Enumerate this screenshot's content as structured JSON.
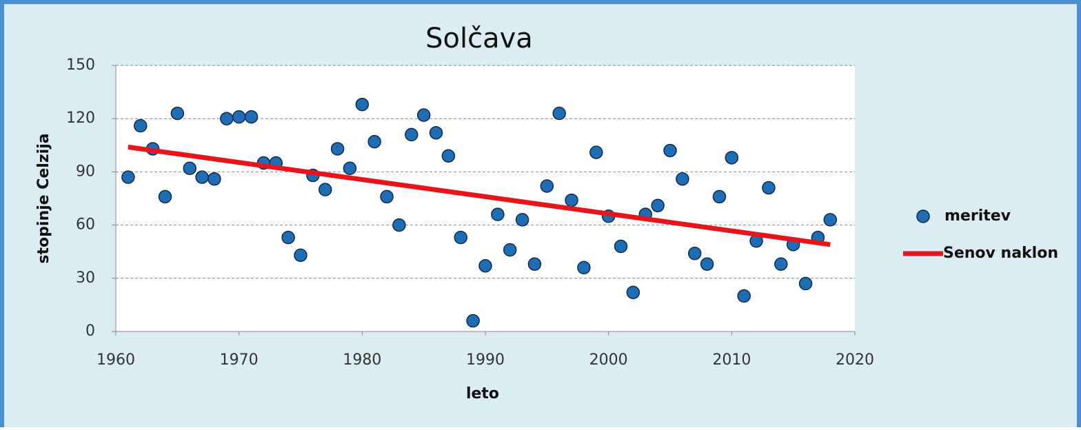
{
  "chart_data": {
    "type": "scatter",
    "title": "Solčava",
    "x_label": "leto",
    "y_label": "stopinje Celzija",
    "xlim": [
      1960,
      2020
    ],
    "xticks": [
      1960,
      1970,
      1980,
      1990,
      2000,
      2010,
      2020
    ],
    "ylim": [
      0,
      150
    ],
    "yticks": [
      0,
      30,
      60,
      90,
      120,
      150
    ],
    "grid": true,
    "legend": "right",
    "series": [
      {
        "name": "meritev",
        "type": "scatter",
        "color": "#1f6db5",
        "x": [
          1961,
          1962,
          1963,
          1964,
          1965,
          1966,
          1967,
          1968,
          1969,
          1970,
          1971,
          1972,
          1973,
          1974,
          1975,
          1976,
          1977,
          1978,
          1979,
          1980,
          1981,
          1982,
          1983,
          1984,
          1985,
          1986,
          1987,
          1988,
          1989,
          1990,
          1991,
          1992,
          1993,
          1994,
          1995,
          1996,
          1997,
          1998,
          1999,
          2000,
          2001,
          2002,
          2003,
          2004,
          2005,
          2006,
          2007,
          2008,
          2009,
          2010,
          2011,
          2012,
          2013,
          2014,
          2015,
          2016,
          2017,
          2018
        ],
        "values": [
          87,
          116,
          103,
          76,
          123,
          92,
          87,
          86,
          120,
          121,
          121,
          95,
          95,
          53,
          43,
          88,
          80,
          103,
          92,
          128,
          107,
          76,
          60,
          111,
          122,
          112,
          99,
          53,
          6,
          37,
          66,
          46,
          63,
          38,
          82,
          123,
          74,
          36,
          101,
          65,
          48,
          22,
          66,
          71,
          102,
          86,
          44,
          38,
          76,
          98,
          20,
          51,
          81,
          38,
          49,
          27,
          53,
          63
        ]
      },
      {
        "name": "Senov naklon",
        "type": "line",
        "color": "#e8141b",
        "x": [
          1961,
          2018
        ],
        "values": [
          104,
          49
        ]
      }
    ]
  }
}
